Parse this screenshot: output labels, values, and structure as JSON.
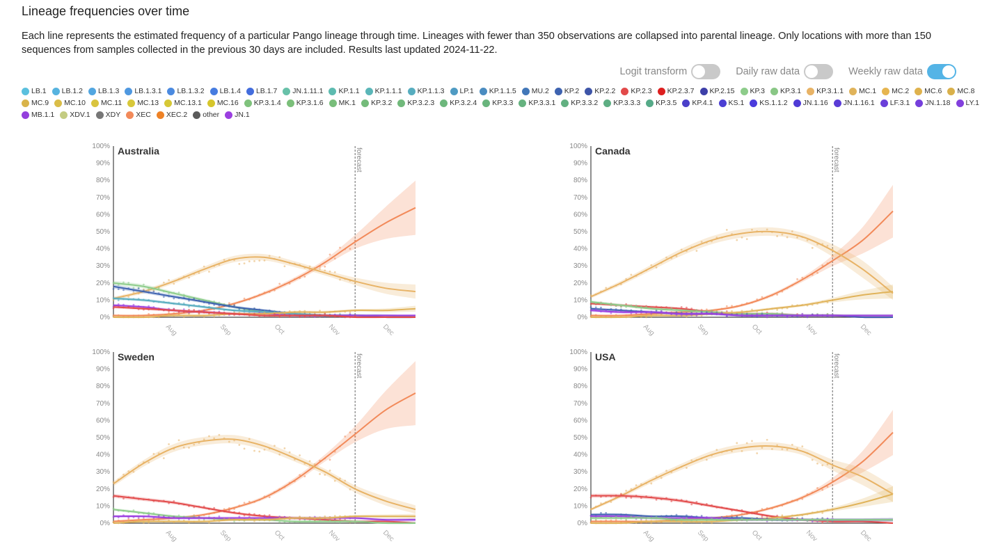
{
  "title": "Lineage frequencies over time",
  "description": "Each line represents the estimated frequency of a particular Pango lineage through time. Lineages with fewer than 350 observations are collapsed into parental lineage. Only locations with more than 150 sequences from samples collected in the previous 30 days are included. Results last updated 2024-11-22.",
  "toggles": [
    {
      "label": "Logit transform",
      "on": false
    },
    {
      "label": "Daily raw data",
      "on": false
    },
    {
      "label": "Weekly raw data",
      "on": true
    }
  ],
  "legend": [
    {
      "name": "LB.1",
      "color": "#5bc0de"
    },
    {
      "name": "LB.1.2",
      "color": "#57b3df"
    },
    {
      "name": "LB.1.3",
      "color": "#52a6e0"
    },
    {
      "name": "LB.1.3.1",
      "color": "#4f98e0"
    },
    {
      "name": "LB.1.3.2",
      "color": "#4b8ae0"
    },
    {
      "name": "LB.1.4",
      "color": "#477ce0"
    },
    {
      "name": "LB.1.7",
      "color": "#436ddd"
    },
    {
      "name": "JN.1.11.1",
      "color": "#68c1a9"
    },
    {
      "name": "KP.1.1",
      "color": "#5dbbb0"
    },
    {
      "name": "KP.1.1.1",
      "color": "#5ab6b8"
    },
    {
      "name": "KP.1.1.3",
      "color": "#57adbf"
    },
    {
      "name": "LP.1",
      "color": "#4f9bc3"
    },
    {
      "name": "KP.1.1.5",
      "color": "#4a8cc0"
    },
    {
      "name": "MU.2",
      "color": "#4277b8"
    },
    {
      "name": "KP.2",
      "color": "#3e63b0"
    },
    {
      "name": "KP.2.2",
      "color": "#3e55a8"
    },
    {
      "name": "KP.2.3",
      "color": "#e24a4a"
    },
    {
      "name": "KP.2.3.7",
      "color": "#dd1f1f"
    },
    {
      "name": "KP.2.15",
      "color": "#3d3fa8"
    },
    {
      "name": "KP.3",
      "color": "#8dcc8a"
    },
    {
      "name": "KP.3.1",
      "color": "#89c785"
    },
    {
      "name": "KP.3.1.1",
      "color": "#e8b366"
    },
    {
      "name": "MC.1",
      "color": "#e0b35a"
    },
    {
      "name": "MC.2",
      "color": "#e6b550"
    },
    {
      "name": "MC.6",
      "color": "#dfb24d"
    },
    {
      "name": "MC.8",
      "color": "#d9b04a"
    },
    {
      "name": "MC.9",
      "color": "#d9b44a"
    },
    {
      "name": "MC.10",
      "color": "#dabd48"
    },
    {
      "name": "MC.11",
      "color": "#d9c43f"
    },
    {
      "name": "MC.13",
      "color": "#d8c83a"
    },
    {
      "name": "MC.13.1",
      "color": "#d6c836"
    },
    {
      "name": "MC.16",
      "color": "#d6c62c"
    },
    {
      "name": "KP.3.1.4",
      "color": "#7fc27c"
    },
    {
      "name": "KP.3.1.6",
      "color": "#7bbf7a"
    },
    {
      "name": "MK.1",
      "color": "#78bd7a"
    },
    {
      "name": "KP.3.2",
      "color": "#74bb7a"
    },
    {
      "name": "KP.3.2.3",
      "color": "#71b97b"
    },
    {
      "name": "KP.3.2.4",
      "color": "#6db77c"
    },
    {
      "name": "KP.3.3",
      "color": "#69b57d"
    },
    {
      "name": "KP.3.3.1",
      "color": "#65b27f"
    },
    {
      "name": "KP.3.3.2",
      "color": "#62b081"
    },
    {
      "name": "KP.3.3.3",
      "color": "#5eae83"
    },
    {
      "name": "KP.3.5",
      "color": "#56aa88"
    },
    {
      "name": "KP.4.1",
      "color": "#4a3fc9"
    },
    {
      "name": "KS.1",
      "color": "#4b3fd3"
    },
    {
      "name": "KS.1.1.2",
      "color": "#4a3bdc"
    },
    {
      "name": "JN.1.16",
      "color": "#4f3bd6"
    },
    {
      "name": "JN.1.16.1",
      "color": "#5a3cd6"
    },
    {
      "name": "LF.3.1",
      "color": "#6a3fd9"
    },
    {
      "name": "JN.1.18",
      "color": "#753fdb"
    },
    {
      "name": "LY.1",
      "color": "#8240dd"
    },
    {
      "name": "MB.1.1",
      "color": "#9440dd"
    },
    {
      "name": "XDV.1",
      "color": "#c4cc82"
    },
    {
      "name": "XDY",
      "color": "#777777"
    },
    {
      "name": "XEC",
      "color": "#f28a5a"
    },
    {
      "name": "XEC.2",
      "color": "#ee8226"
    },
    {
      "name": "other",
      "color": "#5b5b5b"
    },
    {
      "name": "JN.1",
      "color": "#9b3fe0"
    }
  ],
  "chart_data": [
    {
      "type": "line",
      "title": "Australia",
      "ylim": [
        0,
        100
      ],
      "yticks": [
        "0%",
        "10%",
        "20%",
        "30%",
        "40%",
        "50%",
        "60%",
        "70%",
        "80%",
        "90%",
        "100%"
      ],
      "xticks": [
        "Aug",
        "Sep",
        "Oct",
        "Nov",
        "Dec"
      ],
      "forecast_label": "forecast",
      "x": [
        0,
        1,
        2,
        3,
        4,
        5,
        6,
        7,
        8,
        9,
        10
      ],
      "forecast_start_index": 8,
      "series": [
        {
          "name": "XEC",
          "color": "#f28a5a",
          "values": [
            1,
            1,
            2,
            4,
            8,
            14,
            22,
            32,
            44,
            55,
            64
          ]
        },
        {
          "name": "KP.3.1.1",
          "color": "#e8b366",
          "values": [
            11,
            15,
            21,
            28,
            34,
            35,
            31,
            26,
            21,
            17,
            15
          ]
        },
        {
          "name": "KP.3",
          "color": "#8dcc8a",
          "values": [
            20,
            18,
            14,
            10,
            6,
            3,
            2,
            1,
            1,
            0,
            0
          ]
        },
        {
          "name": "KP.2",
          "color": "#3e63b0",
          "values": [
            18,
            15,
            12,
            9,
            6,
            4,
            2,
            1,
            1,
            0,
            0
          ]
        },
        {
          "name": "KP.1.1.3",
          "color": "#57adbf",
          "values": [
            11,
            10,
            8,
            6,
            4,
            3,
            2,
            1,
            1,
            1,
            0
          ]
        },
        {
          "name": "JN.1",
          "color": "#9b3fe0",
          "values": [
            7,
            6,
            4,
            3,
            2,
            2,
            1,
            1,
            1,
            1,
            1
          ]
        },
        {
          "name": "MC.1",
          "color": "#e0b35a",
          "values": [
            0,
            0,
            1,
            1,
            2,
            2,
            3,
            3,
            4,
            4,
            5
          ]
        },
        {
          "name": "KP.2.3",
          "color": "#e24a4a",
          "values": [
            6,
            5,
            4,
            3,
            2,
            1,
            1,
            1,
            0,
            0,
            0
          ]
        }
      ]
    },
    {
      "type": "line",
      "title": "Canada",
      "ylim": [
        0,
        100
      ],
      "yticks": [
        "0%",
        "10%",
        "20%",
        "30%",
        "40%",
        "50%",
        "60%",
        "70%",
        "80%",
        "90%",
        "100%"
      ],
      "xticks": [
        "Aug",
        "Sep",
        "Oct",
        "Nov",
        "Dec"
      ],
      "forecast_label": "forecast",
      "x": [
        0,
        1,
        2,
        3,
        4,
        5,
        6,
        7,
        8,
        9,
        10
      ],
      "forecast_start_index": 8,
      "series": [
        {
          "name": "XEC",
          "color": "#f28a5a",
          "values": [
            1,
            1,
            2,
            3,
            4,
            7,
            13,
            22,
            33,
            45,
            62
          ]
        },
        {
          "name": "KP.3.1.1",
          "color": "#e8b366",
          "values": [
            12,
            20,
            29,
            38,
            45,
            49,
            50,
            47,
            39,
            28,
            14
          ]
        },
        {
          "name": "KP.2.3",
          "color": "#e24a4a",
          "values": [
            8,
            7,
            6,
            5,
            3,
            2,
            2,
            1,
            1,
            0,
            0
          ]
        },
        {
          "name": "KP.3",
          "color": "#8dcc8a",
          "values": [
            9,
            7,
            5,
            4,
            3,
            2,
            2,
            1,
            1,
            1,
            1
          ]
        },
        {
          "name": "MC.1",
          "color": "#e0b35a",
          "values": [
            0,
            0,
            1,
            1,
            2,
            3,
            5,
            7,
            10,
            13,
            15
          ]
        },
        {
          "name": "KP.2",
          "color": "#3e63b0",
          "values": [
            5,
            4,
            3,
            2,
            2,
            1,
            1,
            1,
            1,
            0,
            0
          ]
        },
        {
          "name": "JN.1",
          "color": "#9b3fe0",
          "values": [
            4,
            3,
            3,
            2,
            2,
            1,
            1,
            1,
            1,
            1,
            1
          ]
        }
      ]
    },
    {
      "type": "line",
      "title": "Sweden",
      "ylim": [
        0,
        100
      ],
      "yticks": [
        "0%",
        "10%",
        "20%",
        "30%",
        "40%",
        "50%",
        "60%",
        "70%",
        "80%",
        "90%",
        "100%"
      ],
      "xticks": [
        "Aug",
        "Sep",
        "Oct",
        "Nov",
        "Dec"
      ],
      "forecast_label": "forecast",
      "x": [
        0,
        1,
        2,
        3,
        4,
        5,
        6,
        7,
        8,
        9,
        10
      ],
      "forecast_start_index": 8,
      "series": [
        {
          "name": "XEC",
          "color": "#f28a5a",
          "values": [
            1,
            2,
            3,
            5,
            9,
            15,
            25,
            38,
            52,
            66,
            76
          ]
        },
        {
          "name": "KP.3.1.1",
          "color": "#e8b366",
          "values": [
            23,
            35,
            44,
            48,
            49,
            45,
            38,
            30,
            20,
            13,
            8
          ]
        },
        {
          "name": "KP.2.3",
          "color": "#e24a4a",
          "values": [
            16,
            14,
            12,
            9,
            6,
            4,
            3,
            2,
            1,
            1,
            0
          ]
        },
        {
          "name": "KP.3",
          "color": "#8dcc8a",
          "values": [
            8,
            6,
            4,
            3,
            2,
            2,
            1,
            1,
            1,
            0,
            0
          ]
        },
        {
          "name": "JN.1",
          "color": "#9b3fe0",
          "values": [
            4,
            4,
            3,
            3,
            3,
            3,
            3,
            3,
            3,
            2,
            2
          ]
        },
        {
          "name": "MC.1",
          "color": "#e0b35a",
          "values": [
            0,
            1,
            1,
            1,
            2,
            2,
            3,
            3,
            4,
            4,
            4
          ]
        }
      ]
    },
    {
      "type": "line",
      "title": "USA",
      "ylim": [
        0,
        100
      ],
      "yticks": [
        "0%",
        "10%",
        "20%",
        "30%",
        "40%",
        "50%",
        "60%",
        "70%",
        "80%",
        "90%",
        "100%"
      ],
      "xticks": [
        "Aug",
        "Sep",
        "Oct",
        "Nov",
        "Dec"
      ],
      "forecast_label": "forecast",
      "x": [
        0,
        1,
        2,
        3,
        4,
        5,
        6,
        7,
        8,
        9,
        10
      ],
      "forecast_start_index": 8,
      "series": [
        {
          "name": "XEC",
          "color": "#f28a5a",
          "values": [
            1,
            1,
            1,
            2,
            3,
            5,
            9,
            15,
            24,
            36,
            53
          ]
        },
        {
          "name": "KP.3.1.1",
          "color": "#e8b366",
          "values": [
            8,
            16,
            25,
            33,
            40,
            44,
            45,
            42,
            34,
            27,
            17
          ]
        },
        {
          "name": "KP.2.3",
          "color": "#e24a4a",
          "values": [
            16,
            16,
            15,
            13,
            10,
            7,
            4,
            2,
            1,
            1,
            0
          ]
        },
        {
          "name": "MC.1",
          "color": "#e0b35a",
          "values": [
            0,
            0,
            1,
            1,
            1,
            2,
            3,
            5,
            8,
            12,
            17
          ]
        },
        {
          "name": "KP.2",
          "color": "#3e63b0",
          "values": [
            5,
            5,
            4,
            4,
            3,
            3,
            2,
            2,
            2,
            2,
            2
          ]
        },
        {
          "name": "JN.1",
          "color": "#9b3fe0",
          "values": [
            4,
            4,
            3,
            3,
            3,
            2,
            2,
            2,
            2,
            2,
            2
          ]
        },
        {
          "name": "KP.3",
          "color": "#8dcc8a",
          "values": [
            3,
            3,
            3,
            2,
            2,
            2,
            2,
            2,
            2,
            2,
            2
          ]
        }
      ]
    }
  ]
}
